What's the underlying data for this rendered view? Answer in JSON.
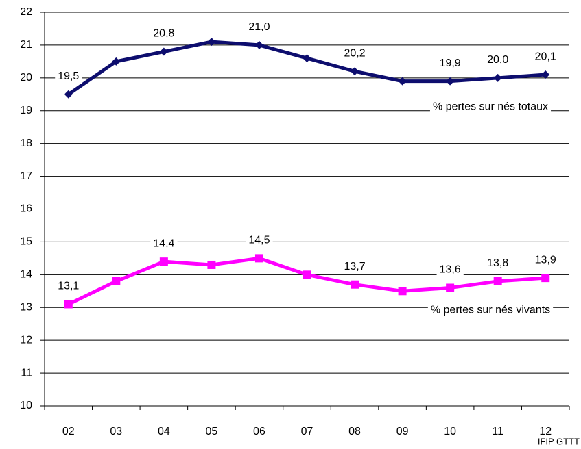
{
  "chart_data": {
    "type": "line",
    "categories": [
      "02",
      "03",
      "04",
      "05",
      "06",
      "07",
      "08",
      "09",
      "10",
      "11",
      "12"
    ],
    "series": [
      {
        "name": "% pertes sur nés totaux",
        "color": "#0d0d6e",
        "marker": "diamond",
        "values": [
          19.5,
          20.5,
          20.8,
          21.1,
          21.0,
          20.6,
          20.2,
          19.9,
          19.9,
          20.0,
          20.1
        ],
        "value_labels": [
          "19,5",
          null,
          "20,8",
          null,
          "21,0",
          null,
          "20,2",
          null,
          "19,9",
          "20,0",
          "20,1"
        ]
      },
      {
        "name": "% pertes sur nés vivants",
        "color": "#ff00ff",
        "marker": "square",
        "values": [
          13.1,
          13.8,
          14.4,
          14.3,
          14.5,
          14.0,
          13.7,
          13.5,
          13.6,
          13.8,
          13.9
        ],
        "value_labels": [
          "13,1",
          null,
          "14,4",
          null,
          "14,5",
          null,
          "13,7",
          null,
          "13,6",
          "13,8",
          "13,9"
        ]
      }
    ],
    "ylim": [
      10,
      22
    ],
    "yticks": [
      10,
      11,
      12,
      13,
      14,
      15,
      16,
      17,
      18,
      19,
      20,
      21,
      22
    ],
    "grid": true,
    "source": "IFIP GTTT"
  }
}
